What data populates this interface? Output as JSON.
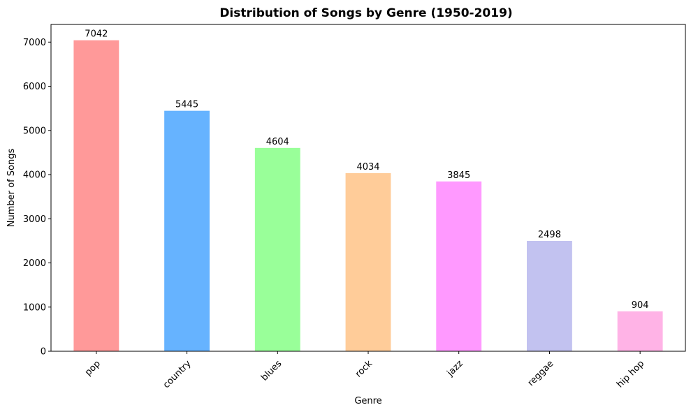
{
  "chart_data": {
    "type": "bar",
    "title": "Distribution of Songs by Genre (1950-2019)",
    "xlabel": "Genre",
    "ylabel": "Number of Songs",
    "categories": [
      "pop",
      "country",
      "blues",
      "rock",
      "jazz",
      "reggae",
      "hip hop"
    ],
    "values": [
      7042,
      5445,
      4604,
      4034,
      3845,
      2498,
      904
    ],
    "colors": [
      "#ff9999",
      "#66b3ff",
      "#99ff99",
      "#ffcc99",
      "#ff99ff",
      "#c2c2f0",
      "#ffb3e6"
    ],
    "ylim": [
      0,
      7400
    ],
    "yticks": [
      0,
      1000,
      2000,
      3000,
      4000,
      5000,
      6000,
      7000
    ],
    "grid": false,
    "legend": "none"
  }
}
